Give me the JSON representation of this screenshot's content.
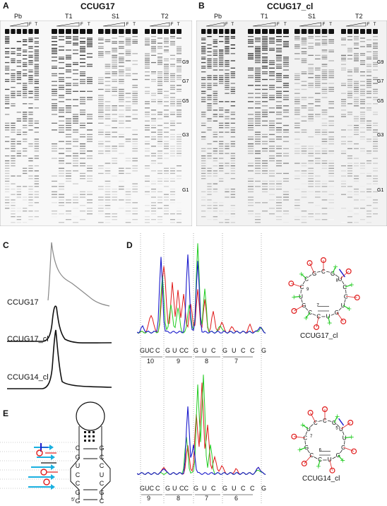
{
  "panels": {
    "A": {
      "letter": "A",
      "title": "CCUG17",
      "groups": [
        "Pb",
        "T1",
        "S1",
        "T2"
      ],
      "lane_letters": {
        "ci": "Ci",
        "f": "F",
        "t": "T"
      },
      "g_markers": [
        "G9",
        "G7",
        "G5",
        "G3",
        "G1"
      ]
    },
    "B": {
      "letter": "B",
      "title": "CCUG17_cl",
      "groups": [
        "Pb",
        "T1",
        "S1",
        "T2"
      ],
      "lane_letters": {
        "ci": "Ci",
        "f": "F",
        "t": "T"
      },
      "g_markers": [
        "G9",
        "G7",
        "G5",
        "G3",
        "G1"
      ]
    },
    "C": {
      "letter": "C",
      "traces": [
        "CCUG17",
        "CCUG17_cl",
        "CCUG14_cl"
      ]
    },
    "D": {
      "letter": "D",
      "top": {
        "sequence": [
          "GUC",
          "C",
          "G",
          "U",
          "CC",
          "G",
          "U",
          "C",
          "G",
          "U",
          "C",
          "C",
          "G"
        ],
        "numbers": [
          "10",
          "9",
          "8",
          "7"
        ]
      },
      "bottom": {
        "sequence": [
          "GUC",
          "C",
          "G",
          "U",
          "CC",
          "G",
          "U",
          "C",
          "G",
          "U",
          "C",
          "C",
          "G"
        ],
        "numbers": [
          "9",
          "8",
          "7",
          "6"
        ]
      }
    },
    "D_structures": {
      "top": {
        "caption": "CCUG17_cl",
        "letters": [
          "C",
          "G",
          "U",
          "C",
          "C",
          "U",
          "G",
          "U",
          "C",
          "C",
          "G",
          "U",
          "C",
          "C",
          "G"
        ],
        "numbers": [
          "9",
          "8",
          "7"
        ]
      },
      "bottom": {
        "caption": "CCUG14_cl",
        "letters": [
          "C",
          "G",
          "U",
          "U",
          "C",
          "G",
          "U",
          "C",
          "C",
          "G",
          "C",
          "U",
          "C"
        ],
        "numbers": [
          "7",
          "5",
          "6"
        ]
      }
    },
    "E": {
      "letter": "E",
      "left_strand": [
        "C",
        "G",
        "U",
        "C",
        "C",
        "G",
        "G"
      ],
      "right_strand": [
        "G",
        "C",
        "C",
        "U",
        "C",
        "G",
        "C"
      ],
      "five_prime": "5'"
    }
  },
  "colors": {
    "red": "#e01a1a",
    "green": "#22cc22",
    "blue": "#1a1acc",
    "cyan": "#1ab0e0"
  }
}
